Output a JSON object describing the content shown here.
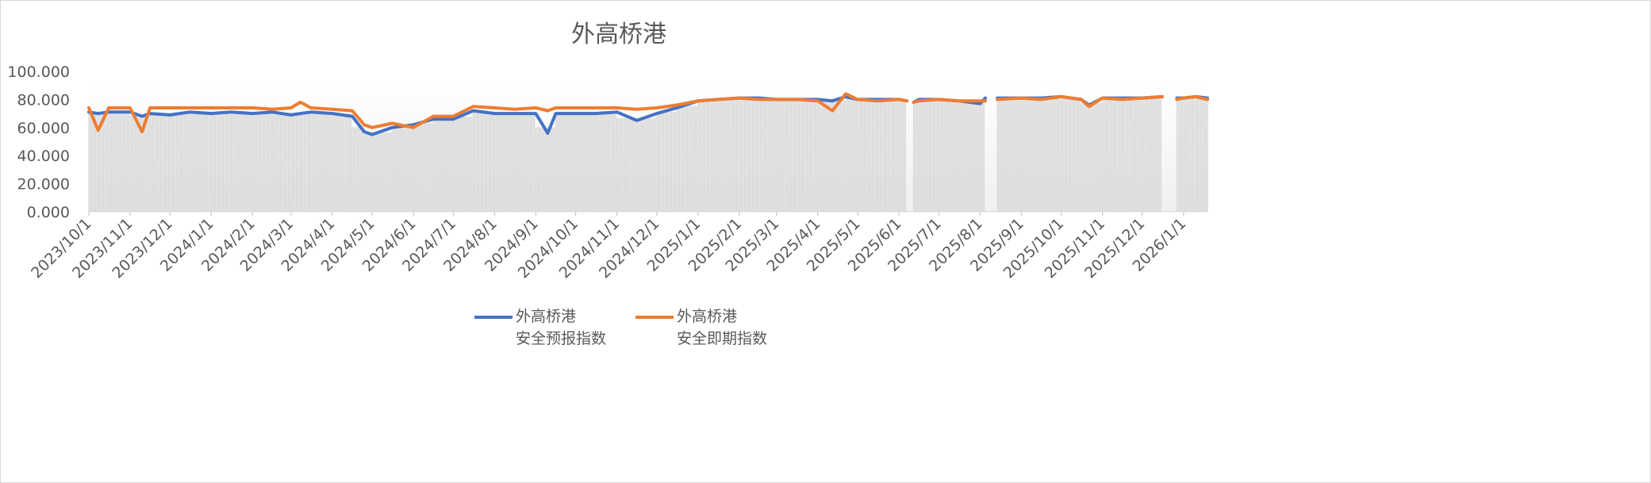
{
  "chart_data": {
    "type": "line",
    "title": "外高桥港",
    "xlabel": "",
    "ylabel": "",
    "ylim": [
      0,
      100
    ],
    "y_ticks": [
      "0.000",
      "20.000",
      "40.000",
      "60.000",
      "80.000",
      "100.000"
    ],
    "x_ticks": [
      "2023/10/1",
      "2023/11/1",
      "2023/12/1",
      "2024/1/1",
      "2024/2/1",
      "2024/3/1",
      "2024/4/1",
      "2024/5/1",
      "2024/6/1",
      "2024/7/1",
      "2024/8/1",
      "2024/9/1",
      "2024/10/1",
      "2024/11/1",
      "2024/12/1",
      "2025/1/1",
      "2025/2/1",
      "2025/3/1",
      "2025/4/1",
      "2025/5/1",
      "2025/6/1",
      "2025/7/1",
      "2025/8/1",
      "2025/9/1",
      "2025/10/1",
      "2025/11/1",
      "2025/12/1",
      "2026/1/1"
    ],
    "x_range": [
      "2023/10/1",
      "2026/1/19"
    ],
    "grid": false,
    "legend_position": "bottom",
    "background_bars": true,
    "x": [
      "2023/10/1",
      "2023/10/8",
      "2023/10/16",
      "2023/11/1",
      "2023/11/10",
      "2023/11/16",
      "2023/12/1",
      "2023/12/16",
      "2024/1/1",
      "2024/1/16",
      "2024/2/1",
      "2024/2/16",
      "2024/3/1",
      "2024/3/8",
      "2024/3/16",
      "2024/4/1",
      "2024/4/16",
      "2024/4/25",
      "2024/5/1",
      "2024/5/16",
      "2024/6/1",
      "2024/6/16",
      "2024/7/1",
      "2024/7/16",
      "2024/8/1",
      "2024/8/16",
      "2024/9/1",
      "2024/9/10",
      "2024/9/16",
      "2024/10/1",
      "2024/10/16",
      "2024/11/1",
      "2024/11/16",
      "2024/12/1",
      "2024/12/16",
      "2025/1/1",
      "2025/1/16",
      "2025/2/1",
      "2025/2/16",
      "2025/3/1",
      "2025/3/16",
      "2025/4/1",
      "2025/4/12",
      "2025/4/22",
      "2025/5/1",
      "2025/5/16",
      "2025/6/1",
      "2025/6/7",
      "2025/6/9",
      "2025/6/12",
      "2025/6/16",
      "2025/7/1",
      "2025/7/16",
      "2025/8/1",
      "2025/8/5",
      "2025/8/9",
      "2025/8/14",
      "2025/9/1",
      "2025/9/16",
      "2025/10/1",
      "2025/10/16",
      "2025/10/22",
      "2025/11/1",
      "2025/11/16",
      "2025/12/1",
      "2025/12/16",
      "2025/12/20",
      "2025/12/27",
      "2026/1/1",
      "2026/1/10",
      "2026/1/19"
    ],
    "series": [
      {
        "name": "外高桥港\n安全预报指数",
        "color": "#4472c4",
        "values": [
          71,
          70,
          71,
          71,
          68,
          70,
          69,
          71,
          70,
          71,
          70,
          71,
          69,
          70,
          71,
          70,
          68,
          57,
          55,
          60,
          62,
          66,
          66,
          72,
          70,
          70,
          70,
          56,
          70,
          70,
          70,
          71,
          65,
          70,
          74,
          79,
          80,
          81,
          81,
          80,
          80,
          80,
          79,
          82,
          80,
          80,
          80,
          79,
          null,
          78,
          80,
          80,
          79,
          77,
          81,
          null,
          81,
          81,
          81,
          82,
          80,
          76,
          81,
          81,
          81,
          82,
          null,
          81,
          81,
          82,
          81
        ]
      },
      {
        "name": "外高桥港\n安全即期指数",
        "color": "#ed7d31",
        "values": [
          74,
          58,
          74,
          74,
          57,
          74,
          74,
          74,
          74,
          74,
          74,
          73,
          74,
          78,
          74,
          73,
          72,
          62,
          60,
          63,
          60,
          68,
          68,
          75,
          74,
          73,
          74,
          72,
          74,
          74,
          74,
          74,
          73,
          74,
          76,
          79,
          80,
          81,
          80,
          80,
          80,
          79,
          72,
          84,
          80,
          79,
          80,
          79,
          null,
          78,
          79,
          80,
          79,
          79,
          79,
          null,
          80,
          81,
          80,
          82,
          80,
          75,
          81,
          80,
          81,
          82,
          null,
          80,
          81,
          82,
          80
        ]
      }
    ]
  },
  "legend": [
    {
      "line1": "外高桥港",
      "line2": "安全预报指数",
      "color": "#4472c4"
    },
    {
      "line1": "外高桥港",
      "line2": "安全即期指数",
      "color": "#ed7d31"
    }
  ]
}
